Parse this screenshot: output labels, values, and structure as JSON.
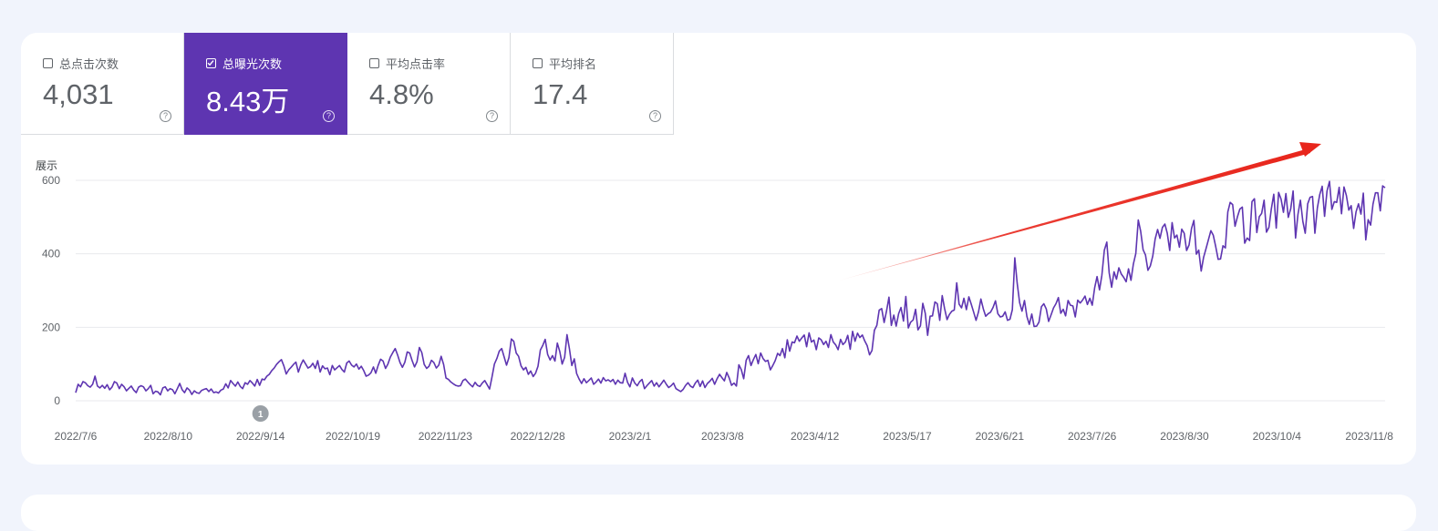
{
  "metrics": [
    {
      "label": "总点击次数",
      "value": "4,031",
      "checked": false
    },
    {
      "label": "总曝光次数",
      "value": "8.43万",
      "checked": true
    },
    {
      "label": "平均点击率",
      "value": "4.8%",
      "checked": false
    },
    {
      "label": "平均排名",
      "value": "17.4",
      "checked": false
    }
  ],
  "help_glyph": "?",
  "icons": {
    "checkbox": "checkbox-icon",
    "help": "help-circle-icon",
    "arrow": "trend-arrow-annotation"
  },
  "colors": {
    "accent": "#5e35b1",
    "line": "#5e35b1",
    "arrow": "#e8261c",
    "background": "#f1f4fc"
  },
  "chart_data": {
    "type": "line",
    "ylabel": "展示",
    "ylim": [
      0,
      600
    ],
    "yticks": [
      "0",
      "200",
      "400",
      "600"
    ],
    "xtick_labels": [
      "2022/7/6",
      "2022/8/10",
      "2022/9/14",
      "2022/10/19",
      "2022/11/23",
      "2022/12/28",
      "2023/2/1",
      "2023/3/8",
      "2023/4/12",
      "2023/5/17",
      "2023/6/21",
      "2023/7/26",
      "2023/8/30",
      "2023/10/4",
      "2023/11/8"
    ],
    "annotation_marker": {
      "label": "1",
      "x": "2022/9/14"
    },
    "grid": true,
    "series": [
      {
        "x_start": "2022/7/6",
        "x_end": "2023/11/14",
        "values": [
          22,
          45,
          38,
          52,
          49,
          41,
          37,
          45,
          67,
          40,
          35,
          42,
          34,
          44,
          30,
          37,
          52,
          48,
          33,
          45,
          38,
          27,
          34,
          40,
          29,
          22,
          37,
          41,
          38,
          27,
          33,
          42,
          19,
          26,
          24,
          16,
          35,
          38,
          27,
          33,
          30,
          19,
          33,
          47,
          30,
          22,
          35,
          29,
          17,
          27,
          22,
          20,
          28,
          31,
          33,
          25,
          32,
          22,
          24,
          21,
          29,
          32,
          46,
          35,
          55,
          47,
          40,
          51,
          39,
          33,
          49,
          45,
          55,
          48,
          40,
          58,
          42,
          59,
          57,
          67,
          72,
          82,
          89,
          99,
          106,
          112,
          95,
          73,
          84,
          91,
          99,
          105,
          78,
          98,
          111,
          100,
          89,
          93,
          102,
          88,
          109,
          78,
          95,
          87,
          89,
          71,
          96,
          84,
          90,
          96,
          85,
          78,
          103,
          108,
          97,
          92,
          100,
          86,
          94,
          82,
          67,
          70,
          76,
          92,
          75,
          97,
          113,
          108,
          88,
          100,
          119,
          131,
          142,
          125,
          104,
          91,
          105,
          133,
          130,
          109,
          92,
          106,
          145,
          131,
          99,
          88,
          94,
          110,
          104,
          89,
          97,
          121,
          99,
          62,
          58,
          51,
          46,
          42,
          40,
          41,
          55,
          59,
          51,
          44,
          38,
          50,
          42,
          39,
          48,
          55,
          44,
          32,
          64,
          100,
          115,
          135,
          142,
          120,
          97,
          117,
          168,
          162,
          130,
          121,
          95,
          84,
          91,
          72,
          81,
          66,
          75,
          94,
          138,
          151,
          167,
          126,
          111,
          123,
          108,
          157,
          134,
          100,
          118,
          180,
          141,
          96,
          114,
          74,
          59,
          47,
          60,
          49,
          55,
          62,
          45,
          51,
          59,
          48,
          63,
          54,
          57,
          52,
          58,
          45,
          56,
          49,
          48,
          75,
          50,
          38,
          62,
          48,
          41,
          52,
          58,
          33,
          41,
          48,
          55,
          40,
          49,
          38,
          47,
          56,
          45,
          36,
          41,
          48,
          33,
          29,
          25,
          31,
          42,
          49,
          40,
          36,
          48,
          56,
          39,
          54,
          36,
          47,
          53,
          61,
          45,
          60,
          72,
          63,
          54,
          77,
          62,
          42,
          48,
          40,
          98,
          85,
          60,
          110,
          123,
          96,
          112,
          126,
          101,
          130,
          115,
          107,
          110,
          84,
          96,
          109,
          129,
          123,
          142,
          117,
          166,
          135,
          160,
          158,
          176,
          162,
          171,
          179,
          147,
          185,
          160,
          165,
          139,
          171,
          166,
          153,
          162,
          145,
          180,
          160,
          152,
          139,
          167,
          153,
          160,
          178,
          140,
          189,
          162,
          184,
          172,
          179,
          163,
          150,
          125,
          137,
          192,
          205,
          247,
          251,
          213,
          244,
          282,
          205,
          233,
          203,
          237,
          254,
          217,
          284,
          198,
          214,
          220,
          249,
          193,
          204,
          265,
          238,
          178,
          230,
          231,
          269,
          264,
          219,
          286,
          251,
          221,
          235,
          244,
          247,
          321,
          263,
          253,
          279,
          248,
          283,
          263,
          241,
          219,
          242,
          277,
          250,
          230,
          237,
          241,
          254,
          272,
          237,
          228,
          230,
          242,
          219,
          222,
          248,
          389,
          320,
          267,
          244,
          273,
          229,
          208,
          236,
          202,
          203,
          214,
          256,
          264,
          250,
          216,
          234,
          253,
          264,
          281,
          238,
          249,
          231,
          273,
          260,
          258,
          228,
          274,
          266,
          274,
          285,
          262,
          279,
          260,
          308,
          338,
          302,
          342,
          410,
          432,
          348,
          309,
          351,
          331,
          362,
          345,
          336,
          324,
          359,
          328,
          372,
          401,
          492,
          462,
          411,
          397,
          355,
          367,
          394,
          440,
          466,
          442,
          472,
          481,
          456,
          409,
          485,
          443,
          451,
          418,
          467,
          456,
          409,
          424,
          469,
          491,
          399,
          410,
          353,
          390,
          414,
          438,
          463,
          451,
          420,
          385,
          386,
          422,
          416,
          514,
          540,
          534,
          475,
          501,
          522,
          527,
          429,
          443,
          436,
          542,
          550,
          458,
          501,
          510,
          546,
          459,
          472,
          522,
          562,
          470,
          567,
          549,
          513,
          564,
          499,
          523,
          571,
          443,
          507,
          546,
          488,
          456,
          536,
          554,
          556,
          456,
          525,
          561,
          584,
          502,
          571,
          597,
          521,
          542,
          540,
          581,
          509,
          582,
          559,
          519,
          531,
          469,
          514,
          536,
          508,
          565,
          438,
          493,
          478,
          535,
          566,
          566,
          517,
          585,
          580
        ]
      }
    ]
  }
}
